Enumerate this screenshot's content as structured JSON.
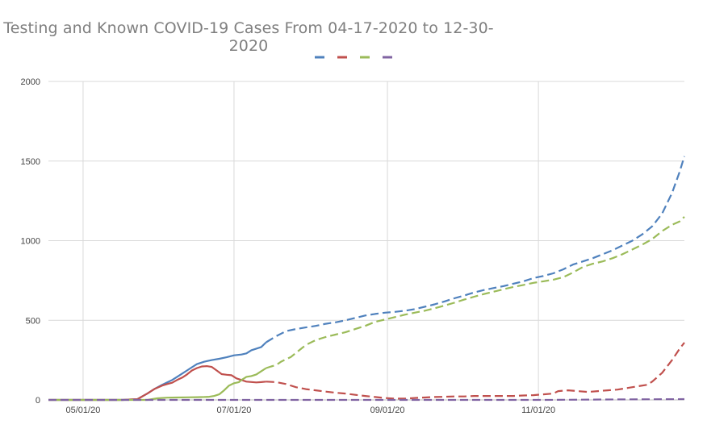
{
  "chart_data": {
    "type": "line",
    "title": "Testing and Known COVID-19 Cases From 04-17-2020 to 12-30-2020",
    "xlabel": "",
    "ylabel": "",
    "ylim": [
      0,
      2000
    ],
    "yticks": [
      "0",
      "500",
      "1000",
      "1500",
      "2000"
    ],
    "xlim": [
      0,
      257
    ],
    "xticks": [
      {
        "label": "05/01/20",
        "day": 14
      },
      {
        "label": "07/01/20",
        "day": 75
      },
      {
        "label": "09/01/20",
        "day": 137
      },
      {
        "label": "11/01/20",
        "day": 198
      }
    ],
    "grid": true,
    "legend": "top-center",
    "solid_until_day": 88,
    "series": [
      {
        "name": "",
        "color": "#4f81bd",
        "points": [
          [
            0,
            0
          ],
          [
            30,
            0
          ],
          [
            36,
            5
          ],
          [
            40,
            40
          ],
          [
            43,
            70
          ],
          [
            46,
            95
          ],
          [
            48,
            110
          ],
          [
            50,
            125
          ],
          [
            52,
            145
          ],
          [
            54,
            165
          ],
          [
            56,
            185
          ],
          [
            58,
            205
          ],
          [
            60,
            225
          ],
          [
            63,
            240
          ],
          [
            66,
            250
          ],
          [
            69,
            258
          ],
          [
            72,
            268
          ],
          [
            75,
            280
          ],
          [
            78,
            285
          ],
          [
            80,
            292
          ],
          [
            82,
            312
          ],
          [
            84,
            322
          ],
          [
            86,
            332
          ],
          [
            88,
            362
          ],
          [
            92,
            400
          ],
          [
            96,
            432
          ],
          [
            100,
            445
          ],
          [
            104,
            455
          ],
          [
            108,
            465
          ],
          [
            112,
            478
          ],
          [
            116,
            487
          ],
          [
            120,
            500
          ],
          [
            124,
            515
          ],
          [
            128,
            530
          ],
          [
            132,
            540
          ],
          [
            136,
            548
          ],
          [
            140,
            553
          ],
          [
            144,
            560
          ],
          [
            148,
            570
          ],
          [
            152,
            585
          ],
          [
            156,
            600
          ],
          [
            160,
            618
          ],
          [
            164,
            638
          ],
          [
            168,
            655
          ],
          [
            172,
            675
          ],
          [
            176,
            690
          ],
          [
            180,
            703
          ],
          [
            184,
            715
          ],
          [
            188,
            730
          ],
          [
            192,
            745
          ],
          [
            196,
            765
          ],
          [
            200,
            778
          ],
          [
            204,
            795
          ],
          [
            208,
            820
          ],
          [
            212,
            850
          ],
          [
            216,
            870
          ],
          [
            220,
            890
          ],
          [
            224,
            915
          ],
          [
            228,
            940
          ],
          [
            232,
            970
          ],
          [
            236,
            1000
          ],
          [
            240,
            1040
          ],
          [
            244,
            1090
          ],
          [
            248,
            1170
          ],
          [
            252,
            1300
          ],
          [
            255,
            1430
          ],
          [
            257,
            1530
          ]
        ]
      },
      {
        "name": "",
        "color": "#c0504d",
        "points": [
          [
            0,
            0
          ],
          [
            30,
            0
          ],
          [
            36,
            5
          ],
          [
            40,
            40
          ],
          [
            43,
            70
          ],
          [
            46,
            90
          ],
          [
            48,
            100
          ],
          [
            50,
            108
          ],
          [
            52,
            125
          ],
          [
            54,
            140
          ],
          [
            56,
            160
          ],
          [
            58,
            185
          ],
          [
            60,
            200
          ],
          [
            62,
            210
          ],
          [
            64,
            212
          ],
          [
            66,
            207
          ],
          [
            68,
            185
          ],
          [
            70,
            162
          ],
          [
            72,
            158
          ],
          [
            74,
            155
          ],
          [
            76,
            135
          ],
          [
            78,
            125
          ],
          [
            80,
            115
          ],
          [
            84,
            110
          ],
          [
            86,
            112
          ],
          [
            88,
            115
          ],
          [
            92,
            112
          ],
          [
            96,
            100
          ],
          [
            100,
            80
          ],
          [
            104,
            68
          ],
          [
            108,
            60
          ],
          [
            112,
            52
          ],
          [
            116,
            45
          ],
          [
            120,
            40
          ],
          [
            124,
            32
          ],
          [
            128,
            25
          ],
          [
            132,
            18
          ],
          [
            136,
            12
          ],
          [
            140,
            8
          ],
          [
            144,
            8
          ],
          [
            148,
            12
          ],
          [
            152,
            15
          ],
          [
            156,
            18
          ],
          [
            160,
            20
          ],
          [
            164,
            22
          ],
          [
            168,
            22
          ],
          [
            172,
            25
          ],
          [
            176,
            25
          ],
          [
            180,
            25
          ],
          [
            184,
            25
          ],
          [
            188,
            25
          ],
          [
            192,
            28
          ],
          [
            196,
            30
          ],
          [
            200,
            35
          ],
          [
            204,
            40
          ],
          [
            206,
            55
          ],
          [
            210,
            60
          ],
          [
            214,
            55
          ],
          [
            218,
            50
          ],
          [
            222,
            55
          ],
          [
            226,
            60
          ],
          [
            230,
            65
          ],
          [
            234,
            75
          ],
          [
            238,
            85
          ],
          [
            242,
            95
          ],
          [
            244,
            115
          ],
          [
            248,
            170
          ],
          [
            252,
            250
          ],
          [
            255,
            320
          ],
          [
            257,
            360
          ]
        ]
      },
      {
        "name": "",
        "color": "#9bbb59",
        "points": [
          [
            0,
            0
          ],
          [
            40,
            0
          ],
          [
            44,
            10
          ],
          [
            48,
            14
          ],
          [
            52,
            15
          ],
          [
            56,
            16
          ],
          [
            60,
            17
          ],
          [
            63,
            18
          ],
          [
            65,
            20
          ],
          [
            67,
            25
          ],
          [
            69,
            35
          ],
          [
            71,
            60
          ],
          [
            73,
            90
          ],
          [
            75,
            105
          ],
          [
            77,
            112
          ],
          [
            78,
            125
          ],
          [
            80,
            145
          ],
          [
            82,
            150
          ],
          [
            84,
            160
          ],
          [
            86,
            180
          ],
          [
            88,
            200
          ],
          [
            90,
            210
          ],
          [
            92,
            218
          ],
          [
            94,
            240
          ],
          [
            96,
            255
          ],
          [
            98,
            270
          ],
          [
            100,
            295
          ],
          [
            104,
            345
          ],
          [
            108,
            375
          ],
          [
            112,
            395
          ],
          [
            116,
            410
          ],
          [
            120,
            425
          ],
          [
            124,
            445
          ],
          [
            128,
            465
          ],
          [
            132,
            490
          ],
          [
            136,
            505
          ],
          [
            140,
            520
          ],
          [
            144,
            535
          ],
          [
            148,
            548
          ],
          [
            152,
            560
          ],
          [
            156,
            575
          ],
          [
            160,
            592
          ],
          [
            164,
            610
          ],
          [
            168,
            630
          ],
          [
            172,
            648
          ],
          [
            176,
            665
          ],
          [
            180,
            680
          ],
          [
            184,
            695
          ],
          [
            188,
            710
          ],
          [
            192,
            722
          ],
          [
            196,
            735
          ],
          [
            200,
            745
          ],
          [
            204,
            755
          ],
          [
            208,
            770
          ],
          [
            212,
            800
          ],
          [
            216,
            835
          ],
          [
            220,
            855
          ],
          [
            224,
            870
          ],
          [
            228,
            890
          ],
          [
            232,
            915
          ],
          [
            236,
            945
          ],
          [
            240,
            975
          ],
          [
            244,
            1010
          ],
          [
            248,
            1060
          ],
          [
            252,
            1100
          ],
          [
            255,
            1120
          ],
          [
            257,
            1150
          ]
        ]
      },
      {
        "name": "",
        "color": "#8064a2",
        "points": [
          [
            0,
            0
          ],
          [
            200,
            0
          ],
          [
            230,
            3
          ],
          [
            257,
            5
          ]
        ]
      }
    ]
  }
}
